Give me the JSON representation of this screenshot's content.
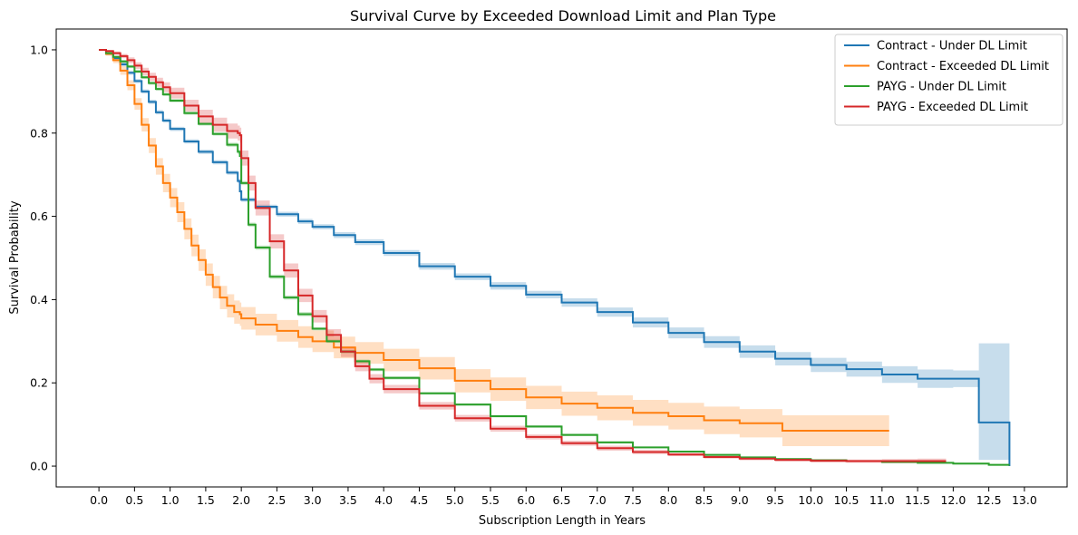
{
  "chart_data": {
    "type": "line",
    "title": "Survival Curve by Exceeded Download Limit and Plan Type",
    "xlabel": "Subscription Length in Years",
    "ylabel": "Survival Probability",
    "xlim": [
      -0.6,
      13.6
    ],
    "ylim": [
      -0.05,
      1.05
    ],
    "xticks": [
      0.0,
      0.5,
      1.0,
      1.5,
      2.0,
      2.5,
      3.0,
      3.5,
      4.0,
      4.5,
      5.0,
      5.5,
      6.0,
      6.5,
      7.0,
      7.5,
      8.0,
      8.5,
      9.0,
      9.5,
      10.0,
      10.5,
      11.0,
      11.5,
      12.0,
      12.5,
      13.0
    ],
    "xtick_labels": [
      "0.0",
      "0.5",
      "1.0",
      "1.5",
      "2.0",
      "2.5",
      "3.0",
      "3.5",
      "4.0",
      "4.5",
      "5.0",
      "5.5",
      "6.0",
      "6.5",
      "7.0",
      "7.5",
      "8.0",
      "8.5",
      "9.0",
      "9.5",
      "10.0",
      "10.5",
      "11.0",
      "11.5",
      "12.0",
      "12.5",
      "13.0"
    ],
    "yticks": [
      0.0,
      0.2,
      0.4,
      0.6,
      0.8,
      1.0
    ],
    "ytick_labels": [
      "0.0",
      "0.2",
      "0.4",
      "0.6",
      "0.8",
      "1.0"
    ],
    "grid": false,
    "legend_position": "top-right",
    "series": [
      {
        "name": "Contract - Under DL Limit",
        "color": "#1f77b4",
        "x": [
          0.0,
          0.1,
          0.2,
          0.3,
          0.4,
          0.5,
          0.6,
          0.7,
          0.8,
          0.9,
          1.0,
          1.2,
          1.4,
          1.6,
          1.8,
          1.95,
          1.98,
          2.0,
          2.2,
          2.5,
          2.8,
          3.0,
          3.3,
          3.6,
          4.0,
          4.5,
          5.0,
          5.5,
          6.0,
          6.5,
          7.0,
          7.5,
          8.0,
          8.5,
          9.0,
          9.5,
          10.0,
          10.5,
          11.0,
          11.5,
          12.0,
          12.35,
          12.36,
          12.78,
          12.79
        ],
        "y": [
          1.0,
          0.99,
          0.98,
          0.965,
          0.945,
          0.925,
          0.9,
          0.875,
          0.85,
          0.83,
          0.81,
          0.78,
          0.755,
          0.73,
          0.705,
          0.685,
          0.66,
          0.64,
          0.623,
          0.605,
          0.588,
          0.575,
          0.555,
          0.538,
          0.512,
          0.48,
          0.455,
          0.433,
          0.412,
          0.393,
          0.37,
          0.345,
          0.32,
          0.298,
          0.275,
          0.258,
          0.243,
          0.233,
          0.22,
          0.21,
          0.21,
          0.21,
          0.105,
          0.105,
          0.0
        ],
        "ci_upper": [
          1.0,
          0.993,
          0.984,
          0.97,
          0.95,
          0.93,
          0.905,
          0.88,
          0.855,
          0.835,
          0.815,
          0.785,
          0.76,
          0.735,
          0.71,
          0.69,
          0.665,
          0.645,
          0.628,
          0.611,
          0.594,
          0.581,
          0.562,
          0.545,
          0.519,
          0.488,
          0.463,
          0.442,
          0.421,
          0.403,
          0.381,
          0.357,
          0.333,
          0.312,
          0.29,
          0.274,
          0.26,
          0.251,
          0.24,
          0.232,
          0.23,
          0.23,
          0.295,
          0.295,
          0.295
        ],
        "ci_lower": [
          1.0,
          0.987,
          0.976,
          0.96,
          0.94,
          0.92,
          0.895,
          0.87,
          0.845,
          0.825,
          0.805,
          0.775,
          0.75,
          0.725,
          0.7,
          0.68,
          0.655,
          0.635,
          0.618,
          0.599,
          0.582,
          0.569,
          0.548,
          0.531,
          0.505,
          0.472,
          0.447,
          0.424,
          0.403,
          0.383,
          0.359,
          0.333,
          0.307,
          0.284,
          0.26,
          0.242,
          0.226,
          0.215,
          0.2,
          0.188,
          0.19,
          0.19,
          0.015,
          0.015,
          0.0
        ]
      },
      {
        "name": "Contract - Exceeded DL Limit",
        "color": "#ff7f0e",
        "x": [
          0.0,
          0.1,
          0.2,
          0.3,
          0.4,
          0.5,
          0.6,
          0.7,
          0.8,
          0.9,
          1.0,
          1.1,
          1.2,
          1.3,
          1.4,
          1.5,
          1.6,
          1.7,
          1.8,
          1.9,
          1.98,
          2.0,
          2.2,
          2.5,
          2.8,
          3.0,
          3.3,
          3.6,
          4.0,
          4.5,
          5.0,
          5.5,
          6.0,
          6.5,
          7.0,
          7.5,
          8.0,
          8.5,
          9.0,
          9.6,
          10.0,
          10.5,
          11.1
        ],
        "y": [
          1.0,
          0.99,
          0.975,
          0.95,
          0.915,
          0.87,
          0.82,
          0.77,
          0.72,
          0.68,
          0.645,
          0.61,
          0.57,
          0.53,
          0.495,
          0.46,
          0.43,
          0.405,
          0.385,
          0.37,
          0.365,
          0.355,
          0.34,
          0.325,
          0.31,
          0.3,
          0.285,
          0.272,
          0.255,
          0.235,
          0.205,
          0.185,
          0.165,
          0.15,
          0.14,
          0.128,
          0.12,
          0.11,
          0.103,
          0.085,
          0.085,
          0.085,
          0.085
        ],
        "ci_upper": [
          1.0,
          0.994,
          0.982,
          0.96,
          0.927,
          0.884,
          0.836,
          0.788,
          0.74,
          0.702,
          0.668,
          0.634,
          0.595,
          0.556,
          0.521,
          0.487,
          0.457,
          0.433,
          0.413,
          0.398,
          0.393,
          0.382,
          0.366,
          0.351,
          0.336,
          0.326,
          0.311,
          0.298,
          0.282,
          0.262,
          0.233,
          0.213,
          0.193,
          0.179,
          0.17,
          0.159,
          0.152,
          0.143,
          0.137,
          0.122,
          0.122,
          0.122,
          0.122
        ],
        "ci_lower": [
          1.0,
          0.986,
          0.968,
          0.94,
          0.903,
          0.856,
          0.804,
          0.752,
          0.7,
          0.658,
          0.622,
          0.586,
          0.545,
          0.504,
          0.469,
          0.433,
          0.403,
          0.377,
          0.357,
          0.342,
          0.337,
          0.328,
          0.314,
          0.299,
          0.284,
          0.274,
          0.259,
          0.246,
          0.228,
          0.208,
          0.177,
          0.157,
          0.137,
          0.121,
          0.11,
          0.097,
          0.088,
          0.077,
          0.069,
          0.048,
          0.048,
          0.048,
          0.048
        ]
      },
      {
        "name": "PAYG - Under DL Limit",
        "color": "#2ca02c",
        "x": [
          0.0,
          0.1,
          0.2,
          0.3,
          0.4,
          0.5,
          0.6,
          0.7,
          0.8,
          0.9,
          1.0,
          1.2,
          1.4,
          1.6,
          1.8,
          1.95,
          1.98,
          2.0,
          2.1,
          2.2,
          2.4,
          2.6,
          2.8,
          3.0,
          3.2,
          3.4,
          3.6,
          3.8,
          4.0,
          4.5,
          5.0,
          5.5,
          6.0,
          6.5,
          7.0,
          7.5,
          8.0,
          8.5,
          9.0,
          9.5,
          10.0,
          10.5,
          11.0,
          11.5,
          12.0,
          12.5,
          12.78
        ],
        "y": [
          1.0,
          0.992,
          0.983,
          0.972,
          0.96,
          0.948,
          0.934,
          0.92,
          0.906,
          0.893,
          0.878,
          0.848,
          0.822,
          0.798,
          0.772,
          0.755,
          0.745,
          0.68,
          0.58,
          0.525,
          0.455,
          0.405,
          0.365,
          0.33,
          0.3,
          0.275,
          0.252,
          0.232,
          0.212,
          0.175,
          0.148,
          0.12,
          0.095,
          0.075,
          0.057,
          0.045,
          0.035,
          0.027,
          0.021,
          0.017,
          0.014,
          0.012,
          0.01,
          0.008,
          0.006,
          0.003,
          0.001
        ],
        "ci_upper": [
          1.0,
          0.994,
          0.986,
          0.976,
          0.964,
          0.952,
          0.938,
          0.924,
          0.91,
          0.897,
          0.882,
          0.852,
          0.826,
          0.802,
          0.777,
          0.76,
          0.75,
          0.685,
          0.585,
          0.53,
          0.46,
          0.41,
          0.37,
          0.334,
          0.304,
          0.279,
          0.256,
          0.236,
          0.216,
          0.178,
          0.151,
          0.123,
          0.098,
          0.078,
          0.06,
          0.047,
          0.037,
          0.029,
          0.023,
          0.019,
          0.016,
          0.014,
          0.012,
          0.01,
          0.008,
          0.005,
          0.003
        ],
        "ci_lower": [
          1.0,
          0.99,
          0.98,
          0.968,
          0.956,
          0.944,
          0.93,
          0.916,
          0.902,
          0.889,
          0.874,
          0.844,
          0.818,
          0.794,
          0.767,
          0.75,
          0.74,
          0.675,
          0.575,
          0.52,
          0.45,
          0.4,
          0.36,
          0.326,
          0.296,
          0.271,
          0.248,
          0.228,
          0.208,
          0.172,
          0.145,
          0.117,
          0.092,
          0.072,
          0.054,
          0.043,
          0.033,
          0.025,
          0.019,
          0.015,
          0.012,
          0.01,
          0.008,
          0.006,
          0.004,
          0.001,
          0.0
        ]
      },
      {
        "name": "PAYG - Exceeded DL Limit",
        "color": "#d62728",
        "x": [
          0.0,
          0.1,
          0.2,
          0.3,
          0.4,
          0.5,
          0.6,
          0.7,
          0.8,
          0.9,
          1.0,
          1.2,
          1.4,
          1.6,
          1.8,
          1.95,
          1.98,
          2.0,
          2.1,
          2.2,
          2.4,
          2.6,
          2.8,
          3.0,
          3.2,
          3.4,
          3.6,
          3.8,
          4.0,
          4.5,
          5.0,
          5.5,
          6.0,
          6.5,
          7.0,
          7.5,
          8.0,
          8.5,
          9.0,
          9.5,
          10.0,
          10.5,
          11.0,
          11.5,
          11.9
        ],
        "y": [
          1.0,
          0.997,
          0.992,
          0.985,
          0.975,
          0.962,
          0.948,
          0.935,
          0.922,
          0.91,
          0.896,
          0.866,
          0.84,
          0.82,
          0.805,
          0.8,
          0.795,
          0.74,
          0.68,
          0.62,
          0.54,
          0.47,
          0.41,
          0.36,
          0.315,
          0.275,
          0.24,
          0.21,
          0.185,
          0.145,
          0.115,
          0.09,
          0.07,
          0.055,
          0.043,
          0.034,
          0.028,
          0.022,
          0.018,
          0.015,
          0.013,
          0.012,
          0.012,
          0.012,
          0.012
        ],
        "ci_upper": [
          1.0,
          1.0,
          0.996,
          0.99,
          0.982,
          0.97,
          0.957,
          0.945,
          0.933,
          0.922,
          0.909,
          0.88,
          0.856,
          0.837,
          0.823,
          0.818,
          0.813,
          0.758,
          0.698,
          0.638,
          0.557,
          0.487,
          0.426,
          0.375,
          0.329,
          0.288,
          0.252,
          0.221,
          0.195,
          0.154,
          0.123,
          0.097,
          0.076,
          0.061,
          0.049,
          0.039,
          0.032,
          0.026,
          0.022,
          0.019,
          0.017,
          0.016,
          0.017,
          0.018,
          0.02
        ],
        "ci_lower": [
          1.0,
          0.994,
          0.988,
          0.98,
          0.968,
          0.954,
          0.939,
          0.925,
          0.911,
          0.898,
          0.883,
          0.852,
          0.824,
          0.803,
          0.787,
          0.782,
          0.777,
          0.722,
          0.662,
          0.602,
          0.523,
          0.453,
          0.394,
          0.345,
          0.301,
          0.262,
          0.228,
          0.199,
          0.175,
          0.136,
          0.107,
          0.083,
          0.064,
          0.049,
          0.037,
          0.029,
          0.024,
          0.018,
          0.014,
          0.011,
          0.009,
          0.008,
          0.007,
          0.006,
          0.005
        ]
      }
    ]
  }
}
